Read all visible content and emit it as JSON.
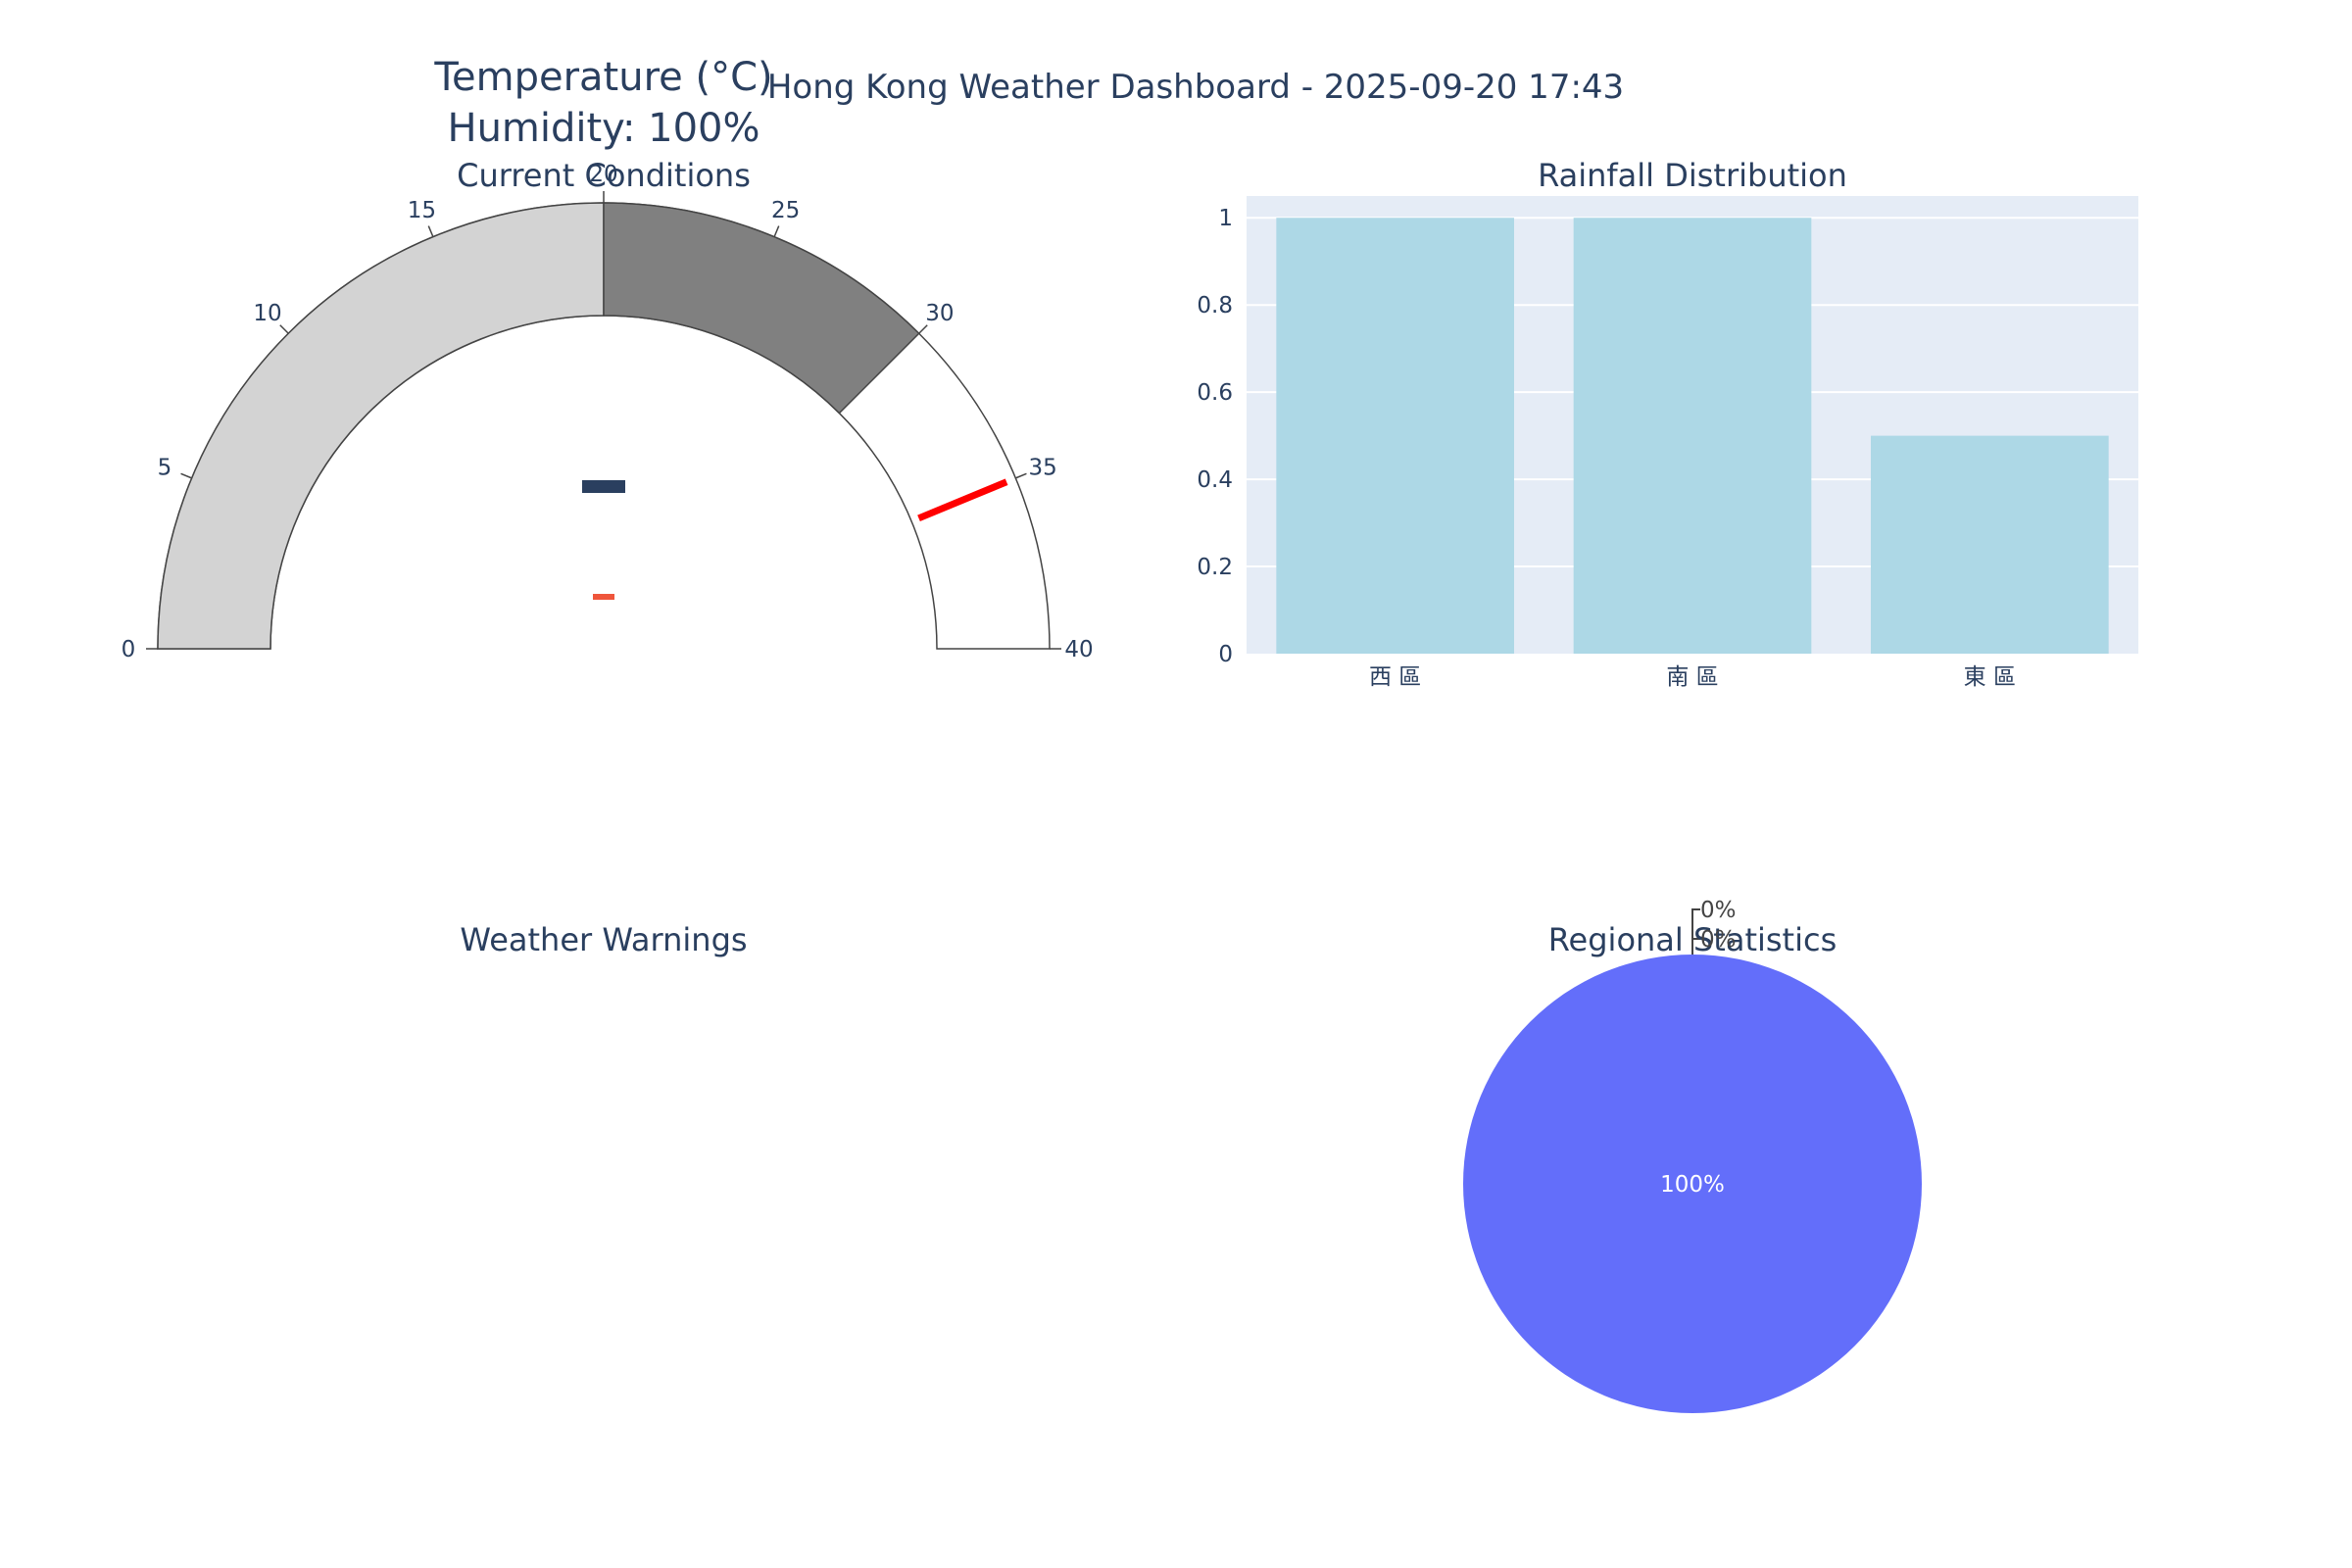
{
  "page": {
    "title": "Hong Kong Weather Dashboard - 2025-09-20 17:43"
  },
  "subplots": {
    "current": "Current Conditions",
    "rainfall": "Rainfall Distribution",
    "warnings": "Weather Warnings",
    "regional": "Regional Statistics"
  },
  "colors": {
    "text": "#2a3f5f",
    "gauge_low": "#d3d3d3",
    "gauge_mid": "#808080",
    "gauge_high": "#ffffff",
    "threshold": "#ff0000",
    "gauge_bar": "#2a3f5f",
    "delta": "#ef553b",
    "bar": "#add8e6",
    "plot_bg": "#e5ecf6",
    "pie_main": "#636efa",
    "pie_other": "#ef553b",
    "pie_third": "#00cc96"
  },
  "chart_data": [
    {
      "type": "gauge",
      "title_lines": [
        "Temperature (°C)",
        "Humidity: 100%"
      ],
      "range": [
        0,
        40
      ],
      "ticks": [
        0,
        5,
        10,
        15,
        20,
        25,
        30,
        35,
        40
      ],
      "steps": [
        {
          "range": [
            0,
            20
          ],
          "color": "lightgray"
        },
        {
          "range": [
            20,
            30
          ],
          "color": "gray"
        }
      ],
      "threshold": 35,
      "value": null
    },
    {
      "type": "bar",
      "title": "Rainfall Distribution",
      "categories": [
        "西 區",
        "南 區",
        "東 區"
      ],
      "values": [
        1,
        1,
        0.5
      ],
      "ylim": [
        0,
        1.05
      ],
      "yticks": [
        0,
        0.2,
        0.4,
        0.6,
        0.8,
        1
      ],
      "ytick_labels": [
        "0",
        "0.2",
        "0.4",
        "0.6",
        "0.8",
        "1"
      ],
      "grid": true
    },
    {
      "type": "table",
      "title": "Weather Warnings",
      "rows": []
    },
    {
      "type": "pie",
      "title": "Regional Statistics",
      "values": [
        100,
        0,
        0
      ],
      "labels": [
        "100%",
        "0%",
        "0%"
      ]
    }
  ]
}
